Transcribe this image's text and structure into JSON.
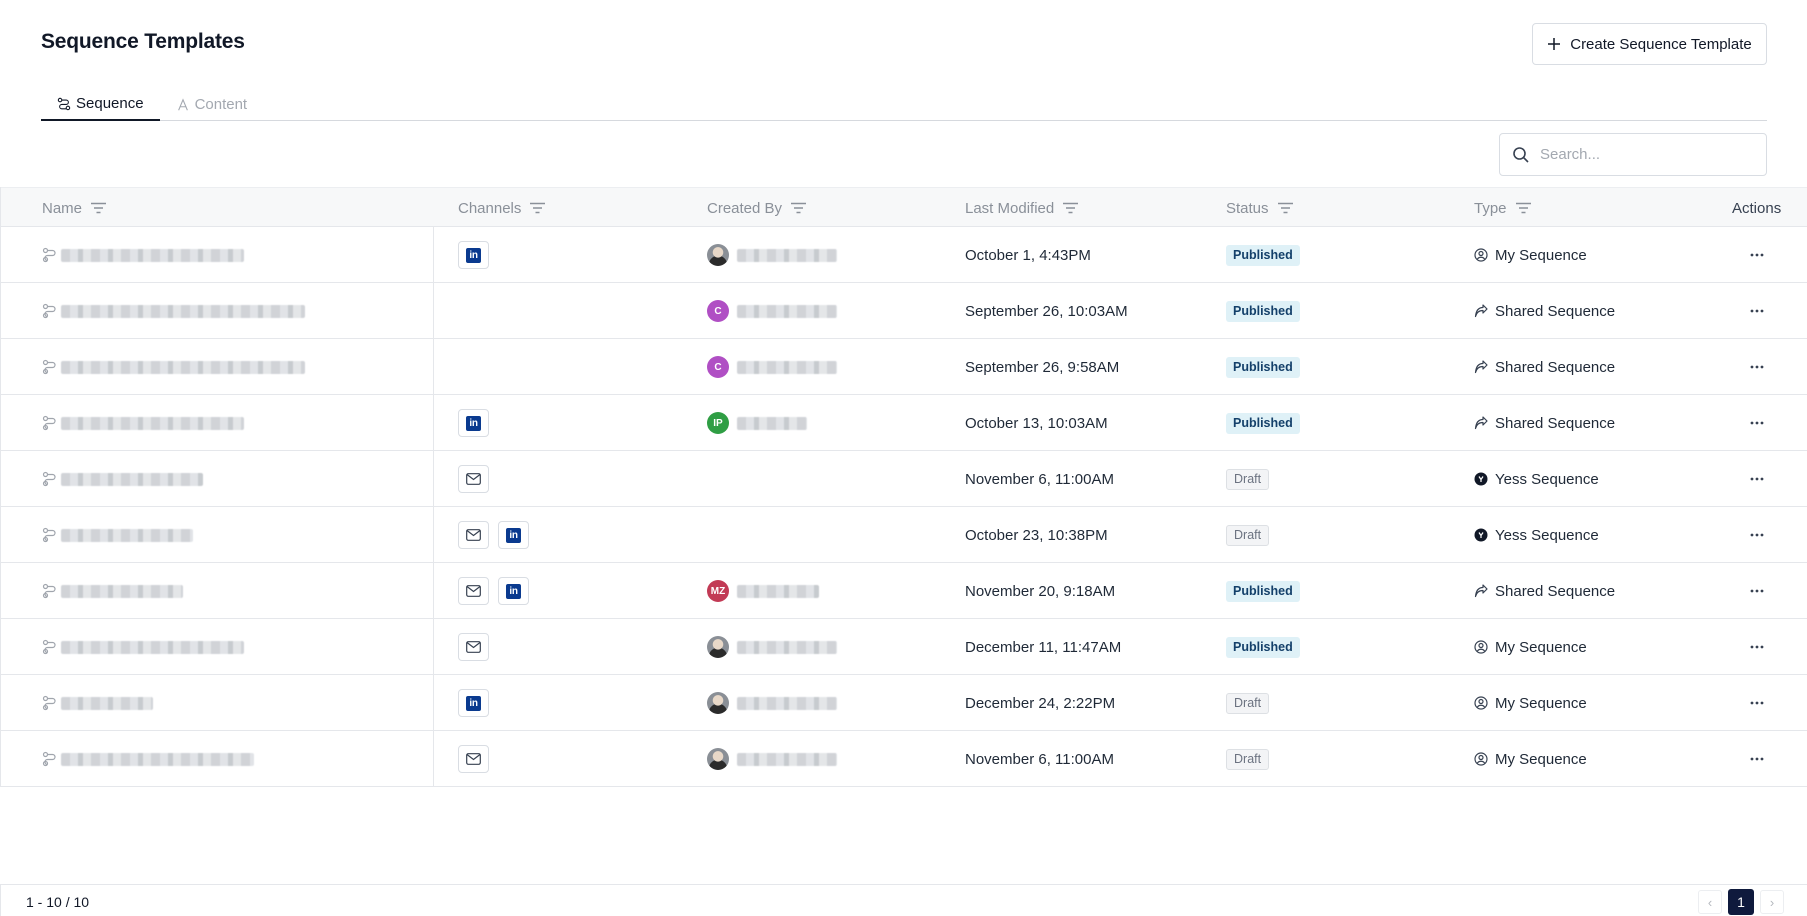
{
  "header": {
    "title": "Sequence Templates",
    "create_button_label": "Create Sequence Template"
  },
  "tabs": [
    {
      "label": "Sequence",
      "active": true
    },
    {
      "label": "Content",
      "active": false
    }
  ],
  "search": {
    "placeholder": "Search..."
  },
  "table": {
    "columns": [
      "Name",
      "Channels",
      "Created By",
      "Last Modified",
      "Status",
      "Type",
      "Actions"
    ],
    "rows": [
      {
        "name_redacted": true,
        "channels": [
          "linkedin"
        ],
        "creator_avatar": "photo",
        "last_modified": "October 1, 4:43PM",
        "status": "Published",
        "type": "My Sequence",
        "type_icon": "user-circle-icon"
      },
      {
        "name_redacted": true,
        "channels": [],
        "creator_avatar": "C",
        "last_modified": "September 26, 10:03AM",
        "status": "Published",
        "type": "Shared Sequence",
        "type_icon": "share-arrow-icon"
      },
      {
        "name_redacted": true,
        "channels": [],
        "creator_avatar": "C",
        "last_modified": "September 26, 9:58AM",
        "status": "Published",
        "type": "Shared Sequence",
        "type_icon": "share-arrow-icon"
      },
      {
        "name_redacted": true,
        "channels": [
          "linkedin"
        ],
        "creator_avatar": "IP",
        "last_modified": "October 13, 10:03AM",
        "status": "Published",
        "type": "Shared Sequence",
        "type_icon": "share-arrow-icon"
      },
      {
        "name_redacted": true,
        "channels": [
          "email"
        ],
        "creator_avatar": "",
        "last_modified": "November 6, 11:00AM",
        "status": "Draft",
        "type": "Yess Sequence",
        "type_icon": "yess-logo-icon"
      },
      {
        "name_redacted": true,
        "channels": [
          "email",
          "linkedin"
        ],
        "creator_avatar": "",
        "last_modified": "October 23, 10:38PM",
        "status": "Draft",
        "type": "Yess Sequence",
        "type_icon": "yess-logo-icon"
      },
      {
        "name_redacted": true,
        "channels": [
          "email",
          "linkedin"
        ],
        "creator_avatar": "MZ",
        "last_modified": "November 20, 9:18AM",
        "status": "Published",
        "type": "Shared Sequence",
        "type_icon": "share-arrow-icon"
      },
      {
        "name_redacted": true,
        "channels": [
          "email"
        ],
        "creator_avatar": "photo",
        "last_modified": "December 11, 11:47AM",
        "status": "Published",
        "type": "My Sequence",
        "type_icon": "user-circle-icon"
      },
      {
        "name_redacted": true,
        "channels": [
          "linkedin"
        ],
        "creator_avatar": "photo",
        "last_modified": "December 24, 2:22PM",
        "status": "Draft",
        "type": "My Sequence",
        "type_icon": "user-circle-icon"
      },
      {
        "name_redacted": true,
        "channels": [
          "email"
        ],
        "creator_avatar": "photo",
        "last_modified": "November 6, 11:00AM",
        "status": "Draft",
        "type": "My Sequence",
        "type_icon": "user-circle-icon"
      }
    ]
  },
  "avatar_colors": {
    "C": "#b04fc4",
    "IP": "#2f9e44",
    "MZ": "#c23a55"
  },
  "status_colors": {
    "Published": "#dff1f7",
    "Draft": "#f3f4f6"
  },
  "channel_labels": {
    "linkedin": "in"
  },
  "footer": {
    "range": "1 - 10 / 10",
    "current_page": "1",
    "prev_symbol": "‹",
    "next_symbol": "›"
  }
}
